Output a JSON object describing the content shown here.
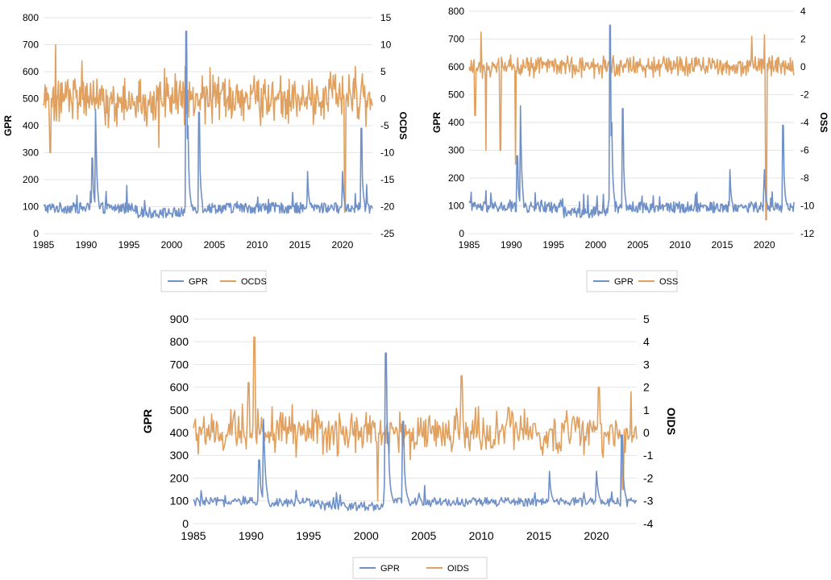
{
  "colors": {
    "gpr": "#7090c8",
    "other": "#e0a060",
    "grid": "#e6e6e6",
    "legend_border": "#d0d0d0"
  },
  "chart_data": [
    {
      "id": "chart-ocds",
      "type": "line",
      "title": "",
      "xlabel": "",
      "ylabel": "GPR",
      "y2label": "OCDS",
      "xlim": [
        1985,
        2023.5
      ],
      "x_ticks": [
        "1985",
        "1990",
        "1995",
        "2000",
        "2005",
        "2010",
        "2015",
        "2020"
      ],
      "ylim": [
        0,
        800
      ],
      "y_ticks": [
        "0",
        "100",
        "200",
        "300",
        "400",
        "500",
        "600",
        "700",
        "800"
      ],
      "y2lim": [
        -25,
        15
      ],
      "y2_ticks": [
        "-25",
        "-20",
        "-15",
        "-10",
        "-5",
        "0",
        "5",
        "10",
        "15"
      ],
      "legend": [
        "GPR",
        "OCDS"
      ],
      "series": [
        {
          "name": "GPR",
          "axis": "left",
          "color": "#7090c8",
          "baseline": 95,
          "noise": 20,
          "events": [
            [
              1990.7,
              280
            ],
            [
              1991.1,
              460
            ],
            [
              2001.7,
              750
            ],
            [
              2001.9,
              400
            ],
            [
              2003.2,
              450
            ],
            [
              2015.9,
              230
            ],
            [
              2020.0,
              230
            ],
            [
              2022.2,
              390
            ]
          ]
        },
        {
          "name": "OCDS",
          "axis": "right",
          "color": "#e0a060",
          "baseline": 0,
          "noise": 3.2,
          "events": [
            [
              1985.8,
              -10
            ],
            [
              1986.4,
              10
            ],
            [
              1989.5,
              7
            ],
            [
              1998.5,
              -9
            ],
            [
              2001.6,
              6
            ],
            [
              2020.3,
              -21
            ],
            [
              2021.5,
              6
            ]
          ]
        }
      ]
    },
    {
      "id": "chart-oss",
      "type": "line",
      "title": "",
      "xlabel": "",
      "ylabel": "GPR",
      "y2label": "OSS",
      "xlim": [
        1985,
        2023.5
      ],
      "x_ticks": [
        "1985",
        "1990",
        "1995",
        "2000",
        "2005",
        "2010",
        "2015",
        "2020"
      ],
      "ylim": [
        0,
        800
      ],
      "y_ticks": [
        "0",
        "100",
        "200",
        "300",
        "400",
        "500",
        "600",
        "700",
        "800"
      ],
      "y2lim": [
        -12,
        4
      ],
      "y2_ticks": [
        "-12",
        "-10",
        "-8",
        "-6",
        "-4",
        "-2",
        "0",
        "2",
        "4"
      ],
      "legend": [
        "GPR",
        "OSS"
      ],
      "series": [
        {
          "name": "GPR",
          "axis": "left",
          "color": "#7090c8",
          "baseline": 95,
          "noise": 20,
          "events": [
            [
              1990.7,
              280
            ],
            [
              1991.1,
              460
            ],
            [
              2001.7,
              750
            ],
            [
              2001.9,
              400
            ],
            [
              2003.2,
              450
            ],
            [
              2015.9,
              230
            ],
            [
              2020.0,
              230
            ],
            [
              2022.2,
              390
            ]
          ]
        },
        {
          "name": "OSS",
          "axis": "right",
          "color": "#e0a060",
          "baseline": 0,
          "noise": 0.55,
          "events": [
            [
              1985.7,
              -3.5
            ],
            [
              1986.4,
              2.5
            ],
            [
              1987.0,
              -6
            ],
            [
              1988.7,
              -6
            ],
            [
              1990.5,
              -7
            ],
            [
              2018.5,
              2.2
            ],
            [
              2020.2,
              -11
            ],
            [
              2020.0,
              2.3
            ]
          ]
        }
      ]
    },
    {
      "id": "chart-oids",
      "type": "line",
      "title": "",
      "xlabel": "",
      "ylabel": "GPR",
      "y2label": "OIDS",
      "xlim": [
        1985,
        2023.5
      ],
      "x_ticks": [
        "1985",
        "1990",
        "1995",
        "2000",
        "2005",
        "2010",
        "2015",
        "2020"
      ],
      "ylim": [
        0,
        900
      ],
      "y_ticks": [
        "0",
        "100",
        "200",
        "300",
        "400",
        "500",
        "600",
        "700",
        "800",
        "900"
      ],
      "y2lim": [
        -4,
        5
      ],
      "y2_ticks": [
        "-4",
        "-3",
        "-2",
        "-1",
        "0",
        "1",
        "2",
        "3",
        "4",
        "5"
      ],
      "legend": [
        "GPR",
        "OIDS"
      ],
      "series": [
        {
          "name": "GPR",
          "axis": "left",
          "color": "#7090c8",
          "baseline": 95,
          "noise": 20,
          "events": [
            [
              1990.7,
              280
            ],
            [
              1991.1,
              460
            ],
            [
              2001.7,
              750
            ],
            [
              2001.9,
              400
            ],
            [
              2003.2,
              450
            ],
            [
              2015.9,
              230
            ],
            [
              2020.0,
              230
            ],
            [
              2022.2,
              390
            ]
          ]
        },
        {
          "name": "OIDS",
          "axis": "right",
          "color": "#e0a060",
          "baseline": 0,
          "noise": 0.7,
          "events": [
            [
              1990.3,
              4.2
            ],
            [
              1989.8,
              2.2
            ],
            [
              2001.0,
              -3.0
            ],
            [
              2008.3,
              2.5
            ],
            [
              2020.2,
              2.0
            ],
            [
              2022.3,
              -2.5
            ],
            [
              2023.0,
              1.8
            ]
          ]
        }
      ]
    }
  ]
}
